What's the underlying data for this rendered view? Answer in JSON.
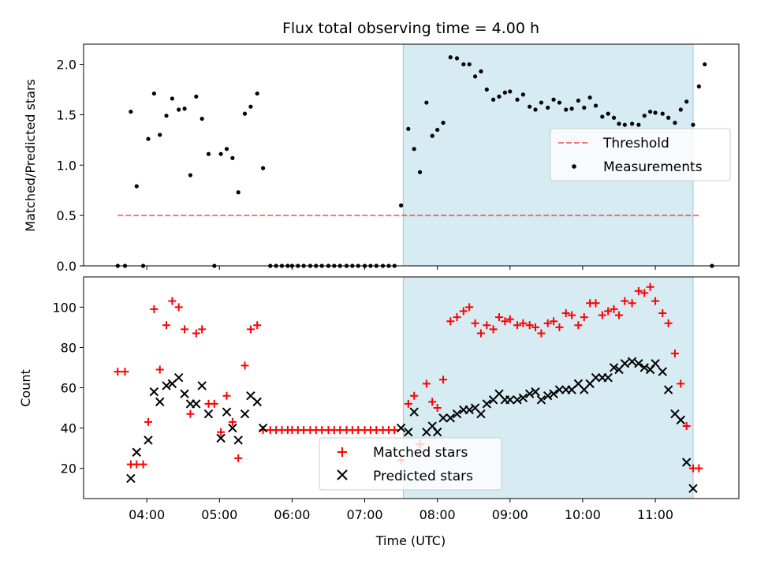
{
  "figure": {
    "title": "Flux total observing time = 4.00 h"
  },
  "colors": {
    "highlight": "#add8e6",
    "threshold": "#ff0000",
    "measurement": "#000000",
    "matched": "#ff0000",
    "predicted": "#000000"
  },
  "chart_data": [
    {
      "id": "ratio",
      "type": "scatter",
      "ylabel": "Matched/Predicted stars",
      "xlabel": "",
      "xlim_hours": [
        3.13,
        12.15
      ],
      "ylim": [
        0,
        2.2
      ],
      "yticks": [
        0.0,
        0.5,
        1.0,
        1.5,
        2.0
      ],
      "ytick_labels": [
        "0.0",
        "0.5",
        "1.0",
        "1.5",
        "2.0"
      ],
      "highlight_span_hours": [
        7.53,
        11.52
      ],
      "legend": {
        "placement": "center-right",
        "entries": [
          {
            "label": "Threshold",
            "kind": "dashed-line"
          },
          {
            "label": "Measurements",
            "kind": "dot"
          }
        ]
      },
      "threshold": {
        "value": 0.5,
        "x_hours": [
          3.6,
          11.6
        ]
      },
      "points": [
        [
          3.6,
          0
        ],
        [
          3.7,
          0
        ],
        [
          3.78,
          1.53
        ],
        [
          3.86,
          0.79
        ],
        [
          3.95,
          0
        ],
        [
          4.02,
          1.26
        ],
        [
          4.1,
          1.71
        ],
        [
          4.18,
          1.3
        ],
        [
          4.27,
          1.49
        ],
        [
          4.35,
          1.66
        ],
        [
          4.44,
          1.55
        ],
        [
          4.52,
          1.56
        ],
        [
          4.6,
          0.9
        ],
        [
          4.68,
          1.68
        ],
        [
          4.76,
          1.46
        ],
        [
          4.85,
          1.11
        ],
        [
          4.93,
          0
        ],
        [
          5.02,
          1.11
        ],
        [
          5.1,
          1.16
        ],
        [
          5.18,
          1.07
        ],
        [
          5.26,
          0.73
        ],
        [
          5.35,
          1.51
        ],
        [
          5.43,
          1.58
        ],
        [
          5.52,
          1.71
        ],
        [
          5.6,
          0.97
        ],
        [
          5.7,
          0
        ],
        [
          5.78,
          0
        ],
        [
          5.86,
          0
        ],
        [
          5.94,
          0
        ],
        [
          6.0,
          0
        ],
        [
          6.08,
          0
        ],
        [
          6.16,
          0
        ],
        [
          6.25,
          0
        ],
        [
          6.33,
          0
        ],
        [
          6.41,
          0
        ],
        [
          6.5,
          0
        ],
        [
          6.58,
          0
        ],
        [
          6.66,
          0
        ],
        [
          6.75,
          0
        ],
        [
          6.83,
          0
        ],
        [
          6.91,
          0
        ],
        [
          7.0,
          0
        ],
        [
          7.08,
          0
        ],
        [
          7.16,
          0
        ],
        [
          7.25,
          0
        ],
        [
          7.33,
          0
        ],
        [
          7.41,
          0
        ],
        [
          7.5,
          0.6
        ],
        [
          7.6,
          1.36
        ],
        [
          7.68,
          1.16
        ],
        [
          7.76,
          0.93
        ],
        [
          7.85,
          1.62
        ],
        [
          7.93,
          1.29
        ],
        [
          8.0,
          1.35
        ],
        [
          8.08,
          1.42
        ],
        [
          8.18,
          2.07
        ],
        [
          8.27,
          2.06
        ],
        [
          8.36,
          2.0
        ],
        [
          8.44,
          2.0
        ],
        [
          8.52,
          1.88
        ],
        [
          8.6,
          1.93
        ],
        [
          8.68,
          1.75
        ],
        [
          8.77,
          1.65
        ],
        [
          8.85,
          1.68
        ],
        [
          8.93,
          1.72
        ],
        [
          9.0,
          1.73
        ],
        [
          9.1,
          1.65
        ],
        [
          9.18,
          1.7
        ],
        [
          9.27,
          1.58
        ],
        [
          9.35,
          1.55
        ],
        [
          9.43,
          1.62
        ],
        [
          9.52,
          1.57
        ],
        [
          9.6,
          1.65
        ],
        [
          9.68,
          1.62
        ],
        [
          9.77,
          1.55
        ],
        [
          9.85,
          1.56
        ],
        [
          9.94,
          1.64
        ],
        [
          10.02,
          1.57
        ],
        [
          10.1,
          1.67
        ],
        [
          10.18,
          1.59
        ],
        [
          10.27,
          1.48
        ],
        [
          10.35,
          1.51
        ],
        [
          10.43,
          1.47
        ],
        [
          10.5,
          1.41
        ],
        [
          10.58,
          1.4
        ],
        [
          10.68,
          1.41
        ],
        [
          10.77,
          1.4
        ],
        [
          10.85,
          1.49
        ],
        [
          10.93,
          1.53
        ],
        [
          11.0,
          1.52
        ],
        [
          11.1,
          1.51
        ],
        [
          11.18,
          1.47
        ],
        [
          11.27,
          1.42
        ],
        [
          11.35,
          1.55
        ],
        [
          11.43,
          1.63
        ],
        [
          11.52,
          1.4
        ],
        [
          11.6,
          1.78
        ],
        [
          11.68,
          2.0
        ],
        [
          11.78,
          0
        ]
      ]
    },
    {
      "id": "count",
      "type": "scatter",
      "ylabel": "Count",
      "xlabel": "Time (UTC)",
      "xlim_hours": [
        3.13,
        12.15
      ],
      "ylim": [
        5,
        115
      ],
      "yticks": [
        20,
        40,
        60,
        80,
        100
      ],
      "ytick_labels": [
        "20",
        "40",
        "60",
        "80",
        "100"
      ],
      "xticks_hours": [
        4,
        5,
        6,
        7,
        8,
        9,
        10,
        11
      ],
      "xtick_labels": [
        "04:00",
        "05:00",
        "06:00",
        "07:00",
        "08:00",
        "09:00",
        "10:00",
        "11:00"
      ],
      "highlight_span_hours": [
        7.53,
        11.52
      ],
      "legend": {
        "placement": "lower-center",
        "entries": [
          {
            "label": "Matched stars",
            "kind": "plus"
          },
          {
            "label": "Predicted stars",
            "kind": "x"
          }
        ]
      },
      "series": [
        {
          "name": "Matched stars",
          "points": [
            [
              3.6,
              68
            ],
            [
              3.7,
              68
            ],
            [
              3.78,
              22
            ],
            [
              3.86,
              22
            ],
            [
              3.95,
              22
            ],
            [
              4.02,
              43
            ],
            [
              4.1,
              99
            ],
            [
              4.18,
              69
            ],
            [
              4.27,
              91
            ],
            [
              4.35,
              103
            ],
            [
              4.44,
              100
            ],
            [
              4.52,
              89
            ],
            [
              4.6,
              47
            ],
            [
              4.68,
              87
            ],
            [
              4.76,
              89
            ],
            [
              4.85,
              52
            ],
            [
              4.93,
              52
            ],
            [
              5.02,
              38
            ],
            [
              5.1,
              56
            ],
            [
              5.18,
              43
            ],
            [
              5.26,
              25
            ],
            [
              5.35,
              71
            ],
            [
              5.43,
              89
            ],
            [
              5.52,
              91
            ],
            [
              5.6,
              39
            ],
            [
              5.7,
              39
            ],
            [
              5.78,
              39
            ],
            [
              5.86,
              39
            ],
            [
              5.94,
              39
            ],
            [
              6.0,
              39
            ],
            [
              6.08,
              39
            ],
            [
              6.16,
              39
            ],
            [
              6.25,
              39
            ],
            [
              6.33,
              39
            ],
            [
              6.41,
              39
            ],
            [
              6.5,
              39
            ],
            [
              6.58,
              39
            ],
            [
              6.66,
              39
            ],
            [
              6.75,
              39
            ],
            [
              6.83,
              39
            ],
            [
              6.91,
              39
            ],
            [
              7.0,
              39
            ],
            [
              7.08,
              39
            ],
            [
              7.16,
              39
            ],
            [
              7.25,
              39
            ],
            [
              7.33,
              39
            ],
            [
              7.41,
              39
            ],
            [
              7.5,
              24
            ],
            [
              7.6,
              52
            ],
            [
              7.68,
              56
            ],
            [
              7.76,
              32
            ],
            [
              7.85,
              62
            ],
            [
              7.93,
              53
            ],
            [
              8.0,
              50
            ],
            [
              8.08,
              64
            ],
            [
              8.18,
              93
            ],
            [
              8.27,
              95
            ],
            [
              8.36,
              98
            ],
            [
              8.44,
              100
            ],
            [
              8.52,
              92
            ],
            [
              8.6,
              87
            ],
            [
              8.68,
              91
            ],
            [
              8.77,
              89
            ],
            [
              8.85,
              95
            ],
            [
              8.93,
              93
            ],
            [
              9.0,
              94
            ],
            [
              9.1,
              91
            ],
            [
              9.18,
              92
            ],
            [
              9.27,
              91
            ],
            [
              9.35,
              90
            ],
            [
              9.43,
              87
            ],
            [
              9.52,
              92
            ],
            [
              9.6,
              93
            ],
            [
              9.68,
              90
            ],
            [
              9.77,
              97
            ],
            [
              9.85,
              96
            ],
            [
              9.94,
              91
            ],
            [
              10.02,
              95
            ],
            [
              10.1,
              102
            ],
            [
              10.18,
              102
            ],
            [
              10.27,
              96
            ],
            [
              10.35,
              98
            ],
            [
              10.43,
              99
            ],
            [
              10.5,
              96
            ],
            [
              10.58,
              103
            ],
            [
              10.68,
              102
            ],
            [
              10.77,
              108
            ],
            [
              10.85,
              107
            ],
            [
              10.93,
              110
            ],
            [
              11.0,
              103
            ],
            [
              11.1,
              97
            ],
            [
              11.18,
              92
            ],
            [
              11.27,
              77
            ],
            [
              11.35,
              62
            ],
            [
              11.43,
              41
            ],
            [
              11.52,
              20
            ],
            [
              11.6,
              20
            ]
          ]
        },
        {
          "name": "Predicted stars",
          "points": [
            [
              3.78,
              15
            ],
            [
              3.86,
              28
            ],
            [
              4.02,
              34
            ],
            [
              4.1,
              58
            ],
            [
              4.18,
              53
            ],
            [
              4.27,
              61
            ],
            [
              4.35,
              62
            ],
            [
              4.44,
              65
            ],
            [
              4.52,
              57
            ],
            [
              4.6,
              52
            ],
            [
              4.68,
              52
            ],
            [
              4.76,
              61
            ],
            [
              4.85,
              47
            ],
            [
              5.02,
              35
            ],
            [
              5.1,
              48
            ],
            [
              5.18,
              40
            ],
            [
              5.26,
              34
            ],
            [
              5.35,
              47
            ],
            [
              5.43,
              56
            ],
            [
              5.52,
              53
            ],
            [
              5.6,
              40
            ],
            [
              7.5,
              40
            ],
            [
              7.6,
              38
            ],
            [
              7.68,
              48
            ],
            [
              7.85,
              38
            ],
            [
              7.93,
              41
            ],
            [
              8.0,
              38
            ],
            [
              8.08,
              45
            ],
            [
              8.18,
              45
            ],
            [
              8.27,
              47
            ],
            [
              8.36,
              49
            ],
            [
              8.44,
              49
            ],
            [
              8.52,
              50
            ],
            [
              8.6,
              47
            ],
            [
              8.68,
              52
            ],
            [
              8.77,
              54
            ],
            [
              8.85,
              57
            ],
            [
              8.93,
              54
            ],
            [
              9.0,
              54
            ],
            [
              9.1,
              54
            ],
            [
              9.18,
              55
            ],
            [
              9.27,
              57
            ],
            [
              9.35,
              58
            ],
            [
              9.43,
              54
            ],
            [
              9.52,
              56
            ],
            [
              9.6,
              57
            ],
            [
              9.68,
              59
            ],
            [
              9.77,
              59
            ],
            [
              9.85,
              59
            ],
            [
              9.94,
              62
            ],
            [
              10.02,
              59
            ],
            [
              10.1,
              62
            ],
            [
              10.18,
              65
            ],
            [
              10.27,
              65
            ],
            [
              10.35,
              65
            ],
            [
              10.43,
              70
            ],
            [
              10.5,
              69
            ],
            [
              10.58,
              72
            ],
            [
              10.68,
              73
            ],
            [
              10.77,
              72
            ],
            [
              10.85,
              70
            ],
            [
              10.93,
              69
            ],
            [
              11.0,
              72
            ],
            [
              11.1,
              68
            ],
            [
              11.18,
              59
            ],
            [
              11.27,
              47
            ],
            [
              11.35,
              44
            ],
            [
              11.43,
              23
            ],
            [
              11.52,
              10
            ]
          ]
        }
      ]
    }
  ]
}
